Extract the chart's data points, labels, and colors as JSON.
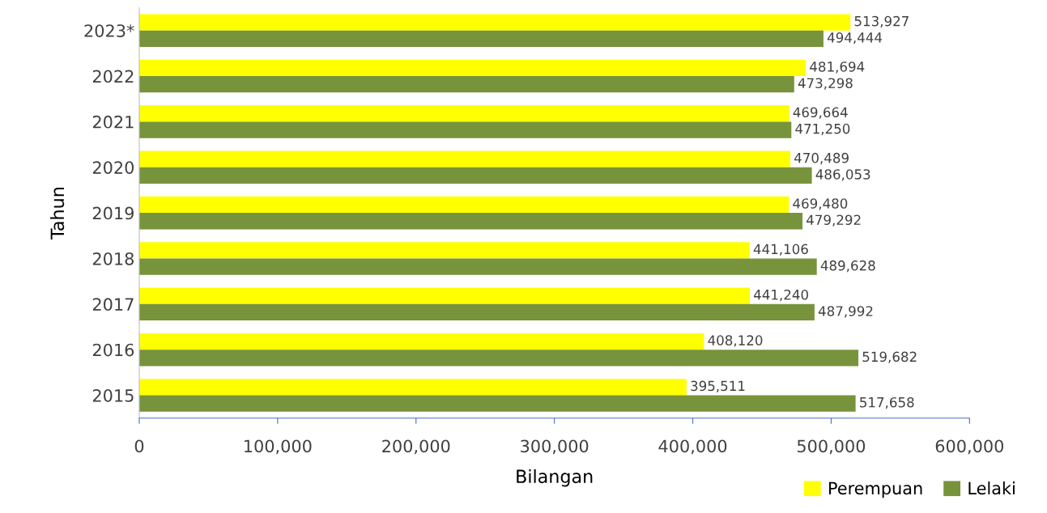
{
  "chart_data": {
    "type": "bar",
    "orientation": "horizontal",
    "xlabel": "Bilangan",
    "ylabel": "Tahun",
    "categories": [
      "2023*",
      "2022",
      "2021",
      "2020",
      "2019",
      "2018",
      "2017",
      "2016",
      "2015"
    ],
    "series": [
      {
        "name": "Perempuan",
        "color": "#ffff00",
        "values": [
          513927,
          481694,
          469664,
          470489,
          469480,
          441106,
          441240,
          408120,
          395511
        ],
        "value_labels": [
          "513,927",
          "481,694",
          "469,664",
          "470,489",
          "469,480",
          "441,106",
          "441,240",
          "408,120",
          "395,511"
        ]
      },
      {
        "name": "Lelaki",
        "color": "#77933c",
        "values": [
          494444,
          473298,
          471250,
          486053,
          479292,
          489628,
          487992,
          519682,
          517658
        ],
        "value_labels": [
          "494,444",
          "473,298",
          "471,250",
          "486,053",
          "479,292",
          "489,628",
          "487,992",
          "519,682",
          "517,658"
        ]
      }
    ],
    "xlim": [
      0,
      600000
    ],
    "xticks": [
      0,
      {
        "value": 100000,
        "label": "100,000"
      },
      {
        "value": 200000,
        "label": "200,000"
      },
      {
        "value": 300000,
        "label": "300,000"
      },
      {
        "value": 400000,
        "label": "400,000"
      },
      {
        "value": 500000,
        "label": "500,000"
      },
      {
        "value": 600000,
        "label": "600,000"
      }
    ],
    "grid": false,
    "legend": "bottom right"
  }
}
